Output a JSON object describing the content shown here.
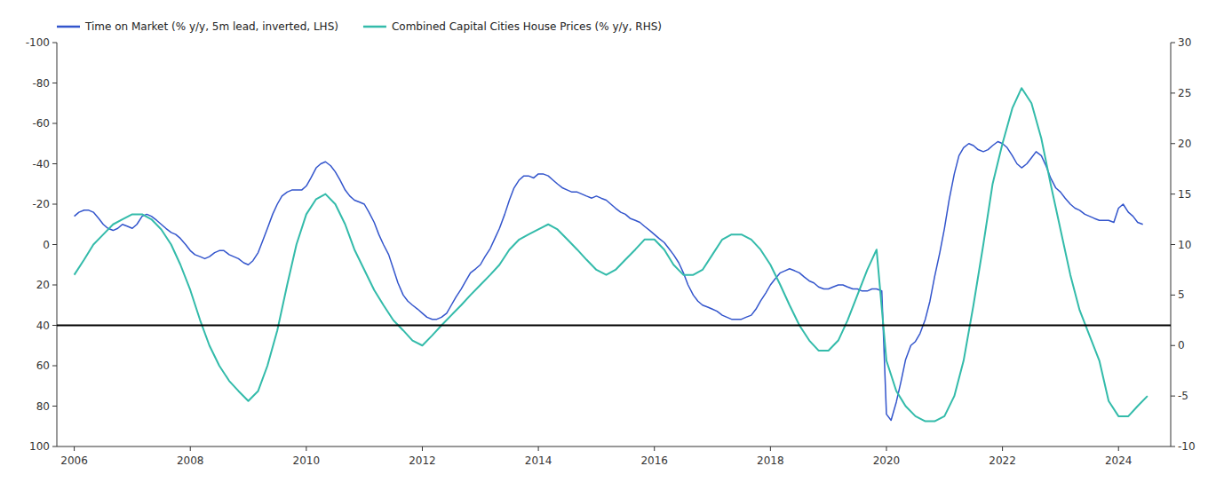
{
  "chart_data": {
    "type": "line",
    "xlim": [
      2005.7,
      2024.9
    ],
    "xticks": [
      2006,
      2008,
      2010,
      2012,
      2014,
      2016,
      2018,
      2020,
      2022,
      2024
    ],
    "ylim": [
      100,
      -100
    ],
    "yticks": [
      -100,
      -80,
      -60,
      -40,
      -20,
      0,
      20,
      40,
      60,
      80,
      100
    ],
    "y2lim": [
      -10,
      30
    ],
    "y2ticks": [
      -10,
      -5,
      0,
      5,
      10,
      15,
      20,
      25,
      30
    ],
    "zero_line": 40,
    "grid": false,
    "legend": "upper left",
    "series": [
      {
        "name": "Time on Market (% y/y, 5m lead, inverted, LHS)",
        "color": "#3355cc",
        "axis": "y",
        "x": [
          2006.0,
          2006.08,
          2006.17,
          2006.25,
          2006.33,
          2006.42,
          2006.5,
          2006.58,
          2006.67,
          2006.75,
          2006.83,
          2006.92,
          2007.0,
          2007.08,
          2007.17,
          2007.25,
          2007.33,
          2007.42,
          2007.5,
          2007.58,
          2007.67,
          2007.75,
          2007.83,
          2007.92,
          2008.0,
          2008.08,
          2008.17,
          2008.25,
          2008.33,
          2008.42,
          2008.5,
          2008.58,
          2008.67,
          2008.75,
          2008.83,
          2008.92,
          2009.0,
          2009.08,
          2009.17,
          2009.25,
          2009.33,
          2009.42,
          2009.5,
          2009.58,
          2009.67,
          2009.75,
          2009.83,
          2009.92,
          2010.0,
          2010.08,
          2010.17,
          2010.25,
          2010.33,
          2010.42,
          2010.5,
          2010.58,
          2010.67,
          2010.75,
          2010.83,
          2010.92,
          2011.0,
          2011.08,
          2011.17,
          2011.25,
          2011.33,
          2011.42,
          2011.5,
          2011.58,
          2011.67,
          2011.75,
          2011.83,
          2011.92,
          2012.0,
          2012.08,
          2012.17,
          2012.25,
          2012.33,
          2012.42,
          2012.5,
          2012.58,
          2012.67,
          2012.75,
          2012.83,
          2012.92,
          2013.0,
          2013.08,
          2013.17,
          2013.25,
          2013.33,
          2013.42,
          2013.5,
          2013.58,
          2013.67,
          2013.75,
          2013.83,
          2013.92,
          2014.0,
          2014.08,
          2014.17,
          2014.25,
          2014.33,
          2014.42,
          2014.5,
          2014.58,
          2014.67,
          2014.75,
          2014.83,
          2014.92,
          2015.0,
          2015.08,
          2015.17,
          2015.25,
          2015.33,
          2015.42,
          2015.5,
          2015.58,
          2015.67,
          2015.75,
          2015.83,
          2015.92,
          2016.0,
          2016.08,
          2016.17,
          2016.25,
          2016.33,
          2016.42,
          2016.5,
          2016.58,
          2016.67,
          2016.75,
          2016.83,
          2016.92,
          2017.0,
          2017.08,
          2017.17,
          2017.25,
          2017.33,
          2017.42,
          2017.5,
          2017.58,
          2017.67,
          2017.75,
          2017.83,
          2017.92,
          2018.0,
          2018.08,
          2018.17,
          2018.25,
          2018.33,
          2018.42,
          2018.5,
          2018.58,
          2018.67,
          2018.75,
          2018.83,
          2018.92,
          2019.0,
          2019.08,
          2019.17,
          2019.25,
          2019.33,
          2019.42,
          2019.5,
          2019.58,
          2019.67,
          2019.75,
          2019.83,
          2019.92,
          2020.0,
          2020.08,
          2020.17,
          2020.25,
          2020.33,
          2020.42,
          2020.5,
          2020.58,
          2020.67,
          2020.75,
          2020.83,
          2020.92,
          2021.0,
          2021.08,
          2021.17,
          2021.25,
          2021.33,
          2021.42,
          2021.5,
          2021.58,
          2021.67,
          2021.75,
          2021.83,
          2021.92,
          2022.0,
          2022.08,
          2022.17,
          2022.25,
          2022.33,
          2022.42,
          2022.5,
          2022.58,
          2022.67,
          2022.75,
          2022.83,
          2022.92,
          2023.0,
          2023.08,
          2023.17,
          2023.25,
          2023.33,
          2023.42,
          2023.5,
          2023.58,
          2023.67,
          2023.75,
          2023.83,
          2023.92,
          2024.0,
          2024.08,
          2024.17,
          2024.25,
          2024.33,
          2024.42
        ],
        "values": [
          -14,
          -16,
          -17,
          -17,
          -16,
          -13,
          -10,
          -8,
          -7,
          -8,
          -10,
          -9,
          -8,
          -10,
          -14,
          -15,
          -14,
          -12,
          -10,
          -8,
          -6,
          -5,
          -3,
          0,
          3,
          5,
          6,
          7,
          6,
          4,
          3,
          3,
          5,
          6,
          7,
          9,
          10,
          8,
          4,
          -2,
          -8,
          -15,
          -20,
          -24,
          -26,
          -27,
          -27,
          -27,
          -29,
          -33,
          -38,
          -40,
          -41,
          -39,
          -36,
          -32,
          -27,
          -24,
          -22,
          -21,
          -20,
          -16,
          -11,
          -5,
          0,
          5,
          12,
          19,
          25,
          28,
          30,
          32,
          34,
          36,
          37,
          37,
          36,
          34,
          30,
          26,
          22,
          18,
          14,
          12,
          10,
          6,
          2,
          -3,
          -8,
          -15,
          -22,
          -28,
          -32,
          -34,
          -34,
          -33,
          -35,
          -35,
          -34,
          -32,
          -30,
          -28,
          -27,
          -26,
          -26,
          -25,
          -24,
          -23,
          -24,
          -23,
          -22,
          -20,
          -18,
          -16,
          -15,
          -13,
          -12,
          -11,
          -9,
          -7,
          -5,
          -3,
          -1,
          2,
          5,
          9,
          14,
          20,
          25,
          28,
          30,
          31,
          32,
          33,
          35,
          36,
          37,
          37,
          37,
          36,
          35,
          32,
          28,
          24,
          20,
          17,
          14,
          13,
          12,
          13,
          14,
          16,
          18,
          19,
          21,
          22,
          22,
          21,
          20,
          20,
          21,
          22,
          22,
          23,
          23,
          22,
          22,
          23,
          84,
          87,
          78,
          68,
          57,
          50,
          48,
          44,
          37,
          28,
          16,
          4,
          -8,
          -22,
          -35,
          -44,
          -48,
          -50,
          -49,
          -47,
          -46,
          -47,
          -49,
          -51,
          -50,
          -48,
          -44,
          -40,
          -38,
          -40,
          -43,
          -46,
          -44,
          -39,
          -33,
          -28,
          -26,
          -23,
          -20,
          -18,
          -17,
          -15,
          -14,
          -13,
          -12,
          -12,
          -12,
          -11,
          -18,
          -20,
          -16,
          -14,
          -11,
          -10
        ]
      },
      {
        "name": "Combined Capital Cities House Prices (% y/y, RHS)",
        "color": "#33bbaa",
        "axis": "y2",
        "x": [
          2006.0,
          2006.17,
          2006.33,
          2006.5,
          2006.67,
          2006.83,
          2007.0,
          2007.17,
          2007.33,
          2007.5,
          2007.67,
          2007.83,
          2008.0,
          2008.17,
          2008.33,
          2008.5,
          2008.67,
          2008.83,
          2009.0,
          2009.17,
          2009.33,
          2009.5,
          2009.67,
          2009.83,
          2010.0,
          2010.17,
          2010.33,
          2010.5,
          2010.67,
          2010.83,
          2011.0,
          2011.17,
          2011.33,
          2011.5,
          2011.67,
          2011.83,
          2012.0,
          2012.17,
          2012.33,
          2012.5,
          2012.67,
          2012.83,
          2013.0,
          2013.17,
          2013.33,
          2013.5,
          2013.67,
          2013.83,
          2014.0,
          2014.17,
          2014.33,
          2014.5,
          2014.67,
          2014.83,
          2015.0,
          2015.17,
          2015.33,
          2015.5,
          2015.67,
          2015.83,
          2016.0,
          2016.17,
          2016.33,
          2016.5,
          2016.67,
          2016.83,
          2017.0,
          2017.17,
          2017.33,
          2017.5,
          2017.67,
          2017.83,
          2018.0,
          2018.17,
          2018.33,
          2018.5,
          2018.67,
          2018.83,
          2019.0,
          2019.17,
          2019.33,
          2019.5,
          2019.67,
          2019.83,
          2020.0,
          2020.17,
          2020.33,
          2020.5,
          2020.67,
          2020.83,
          2021.0,
          2021.17,
          2021.33,
          2021.5,
          2021.67,
          2021.83,
          2022.0,
          2022.17,
          2022.33,
          2022.5,
          2022.67,
          2022.83,
          2023.0,
          2023.17,
          2023.33,
          2023.5,
          2023.67,
          2023.83,
          2024.0,
          2024.17,
          2024.33,
          2024.5
        ],
        "values": [
          7.0,
          8.5,
          10.0,
          11.0,
          12.0,
          12.5,
          13.0,
          13.0,
          12.5,
          11.5,
          10.0,
          8.0,
          5.5,
          2.5,
          0.0,
          -2.0,
          -3.5,
          -4.5,
          -5.5,
          -4.5,
          -2.0,
          1.5,
          6.0,
          10.0,
          13.0,
          14.5,
          15.0,
          14.0,
          12.0,
          9.5,
          7.5,
          5.5,
          4.0,
          2.5,
          1.5,
          0.5,
          0.0,
          1.0,
          2.0,
          3.0,
          4.0,
          5.0,
          6.0,
          7.0,
          8.0,
          9.5,
          10.5,
          11.0,
          11.5,
          12.0,
          11.5,
          10.5,
          9.5,
          8.5,
          7.5,
          7.0,
          7.5,
          8.5,
          9.5,
          10.5,
          10.5,
          9.5,
          8.0,
          7.0,
          7.0,
          7.5,
          9.0,
          10.5,
          11.0,
          11.0,
          10.5,
          9.5,
          8.0,
          6.0,
          4.0,
          2.0,
          0.5,
          -0.5,
          -0.5,
          0.5,
          2.5,
          5.0,
          7.5,
          9.5,
          -1.5,
          -4.5,
          -6.0,
          -7.0,
          -7.5,
          -7.5,
          -7.0,
          -5.0,
          -1.5,
          4.0,
          10.0,
          16.0,
          20.0,
          23.5,
          25.5,
          24.0,
          20.5,
          16.0,
          11.5,
          7.0,
          3.5,
          1.0,
          -1.5,
          -5.5,
          -7.0,
          -7.0,
          -6.0,
          -5.0
        ]
      }
    ]
  }
}
